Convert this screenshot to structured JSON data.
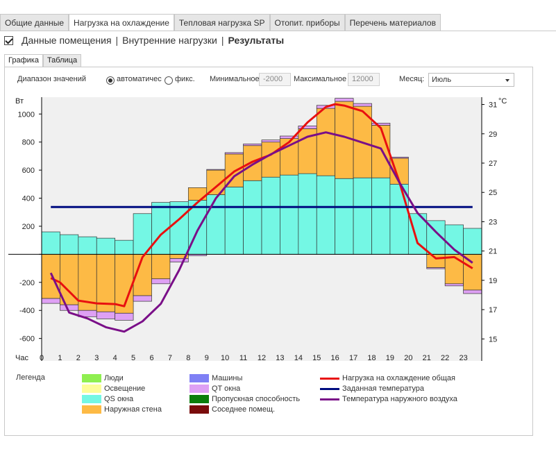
{
  "top_tabs": [
    {
      "label": "Общие данные",
      "active": false
    },
    {
      "label": "Нагрузка на охлаждение",
      "active": true
    },
    {
      "label": "Тепловая нагрузка SP",
      "active": false
    },
    {
      "label": "Отопит. приборы",
      "active": false
    },
    {
      "label": "Перечень материалов",
      "active": false
    }
  ],
  "breadcrumb": {
    "items": [
      "Данные помещения",
      "Внутренние нагрузки",
      "Результаты"
    ],
    "separator": "|"
  },
  "sub_tabs": [
    {
      "label": "Графика",
      "active": true
    },
    {
      "label": "Таблица",
      "active": false
    }
  ],
  "controls": {
    "range_label": "Диапазон значений",
    "auto_label": "автоматичес",
    "fixed_label": "фикс.",
    "min_label": "Минимальное",
    "min_value": "-2000",
    "max_label": "Максимальное",
    "max_value": "12000",
    "month_label": "Месяц:",
    "month_value": "Июль"
  },
  "chart_data": {
    "type": "bar",
    "left_axis_label": "Вт",
    "right_axis_label": "°C",
    "x_label": "Час",
    "x": [
      0,
      1,
      2,
      3,
      4,
      5,
      6,
      7,
      8,
      9,
      10,
      11,
      12,
      13,
      14,
      15,
      16,
      17,
      18,
      19,
      20,
      21,
      22,
      23
    ],
    "ylim": [
      -760,
      1120
    ],
    "yticks": [
      -600,
      -400,
      -200,
      0,
      200,
      400,
      600,
      800,
      1000
    ],
    "ytick_labels": [
      "-600",
      "-400",
      "-200",
      "",
      "200",
      "400",
      "600",
      "800",
      "1000"
    ],
    "y2lim": [
      13.5,
      31.5
    ],
    "y2ticks": [
      15,
      17,
      19,
      21,
      23,
      25,
      27,
      29,
      31
    ],
    "grid": false,
    "series": [
      {
        "name": "Люди",
        "color": "#8fef50",
        "values": [
          0,
          0,
          0,
          0,
          0,
          0,
          0,
          0,
          0,
          0,
          0,
          0,
          0,
          0,
          0,
          0,
          0,
          0,
          0,
          0,
          0,
          0,
          0,
          0
        ]
      },
      {
        "name": "Освещение",
        "color": "#fdfd9a",
        "values": [
          0,
          0,
          0,
          0,
          0,
          0,
          0,
          0,
          0,
          0,
          0,
          0,
          0,
          0,
          0,
          0,
          0,
          0,
          0,
          0,
          0,
          0,
          0,
          0
        ]
      },
      {
        "name": "QS окна",
        "color": "#74f7e4",
        "values": [
          160,
          140,
          125,
          115,
          100,
          290,
          370,
          375,
          385,
          425,
          480,
          525,
          550,
          565,
          575,
          560,
          540,
          545,
          545,
          500,
          290,
          240,
          210,
          185
        ]
      },
      {
        "name": "Наружная стена",
        "color": "#fdba45",
        "values": [
          -315,
          -360,
          -400,
          -410,
          -420,
          -295,
          -175,
          -30,
          90,
          175,
          235,
          250,
          250,
          260,
          320,
          480,
          550,
          510,
          375,
          185,
          0,
          -95,
          -210,
          -255
        ]
      },
      {
        "name": "Машины",
        "color": "#7f80f5",
        "values": [
          0,
          0,
          0,
          0,
          0,
          0,
          0,
          0,
          0,
          0,
          0,
          0,
          0,
          0,
          0,
          0,
          0,
          0,
          0,
          0,
          0,
          0,
          0,
          0
        ]
      },
      {
        "name": "QT окна",
        "color": "#dea0f4",
        "values": [
          -35,
          -40,
          -45,
          -50,
          -50,
          -40,
          -35,
          -25,
          -10,
          5,
          10,
          12,
          15,
          18,
          20,
          22,
          22,
          20,
          15,
          8,
          0,
          -8,
          -15,
          -25
        ]
      },
      {
        "name": "Пропускная способность",
        "color": "#0b7d0b",
        "values": [
          0,
          0,
          0,
          0,
          0,
          0,
          0,
          0,
          0,
          0,
          0,
          0,
          0,
          0,
          0,
          0,
          0,
          0,
          0,
          0,
          0,
          0,
          0,
          0
        ]
      },
      {
        "name": "Соседнее помещ.",
        "color": "#7a0c0c",
        "values": [
          0,
          0,
          0,
          0,
          0,
          0,
          0,
          0,
          0,
          0,
          0,
          0,
          0,
          0,
          0,
          0,
          0,
          0,
          0,
          0,
          0,
          0,
          0,
          0
        ]
      }
    ],
    "lines": [
      {
        "name": "Нагрузка на охлаждение общая",
        "color": "#e81010",
        "axis": "left",
        "x": [
          0.5,
          1,
          2,
          3,
          4,
          4.5,
          5.5,
          6.5,
          7.5,
          8.5,
          9.5,
          10.5,
          11.5,
          12.5,
          13.5,
          14.5,
          15.5,
          16,
          16.5,
          17.5,
          18.5,
          19.5,
          20.5,
          21.5,
          22.5,
          23.5
        ],
        "values": [
          -170,
          -200,
          -330,
          -350,
          -355,
          -370,
          -20,
          140,
          250,
          370,
          480,
          590,
          660,
          710,
          800,
          940,
          1050,
          1070,
          1060,
          1020,
          900,
          520,
          80,
          -30,
          -20,
          -100
        ]
      },
      {
        "name": "Заданная температура",
        "color": "#000c80",
        "axis": "right",
        "x": [
          0.5,
          23.5
        ],
        "values": [
          24,
          24
        ]
      },
      {
        "name": "Температура наружного воздуха",
        "color": "#7a0f88",
        "axis": "right",
        "x": [
          0.5,
          1.5,
          2.5,
          3.5,
          4.5,
          5.5,
          6.5,
          7.5,
          8.5,
          9.5,
          10.5,
          11.5,
          12.5,
          13.5,
          14.5,
          15.5,
          16.5,
          17.5,
          18.5,
          19.5,
          20.5,
          21.5,
          22.5,
          23.5
        ],
        "values": [
          19.5,
          16.8,
          16.4,
          15.8,
          15.5,
          16.2,
          17.4,
          19.7,
          22.4,
          24.6,
          26.1,
          26.9,
          27.6,
          28.2,
          28.8,
          29.1,
          28.8,
          28.4,
          28.0,
          25.7,
          23.6,
          22.3,
          21.1,
          20.2
        ]
      }
    ]
  },
  "legend": {
    "title": "Легенда",
    "items": [
      {
        "label": "Люди",
        "color": "#8fef50",
        "kind": "box"
      },
      {
        "label": "Освещение",
        "color": "#fdfd9a",
        "kind": "box"
      },
      {
        "label": "QS окна",
        "color": "#74f7e4",
        "kind": "box"
      },
      {
        "label": "Наружная стена",
        "color": "#fdba45",
        "kind": "box"
      },
      {
        "label": "Машины",
        "color": "#7f80f5",
        "kind": "box"
      },
      {
        "label": "QT окна",
        "color": "#dea0f4",
        "kind": "box"
      },
      {
        "label": "Пропускная способность",
        "color": "#0b7d0b",
        "kind": "box"
      },
      {
        "label": "Соседнее помещ.",
        "color": "#7a0c0c",
        "kind": "box"
      },
      {
        "label": "Нагрузка на охлаждение общая",
        "color": "#e81010",
        "kind": "line"
      },
      {
        "label": "Заданная температура",
        "color": "#000c80",
        "kind": "line"
      },
      {
        "label": "Температура наружного воздуха",
        "color": "#7a0f88",
        "kind": "line"
      }
    ]
  }
}
